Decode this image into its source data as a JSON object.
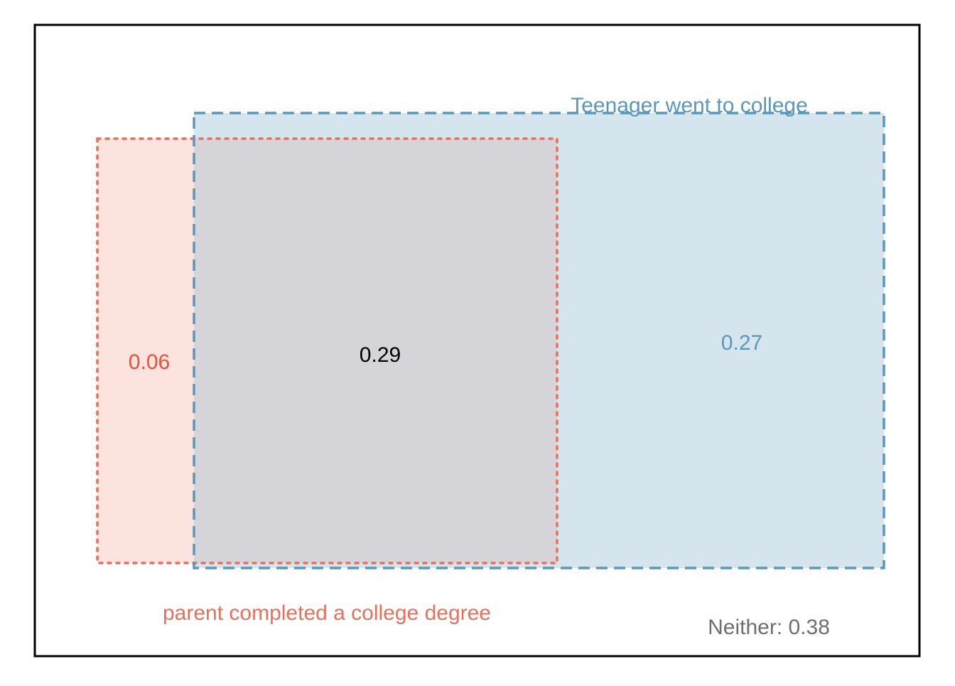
{
  "diagram": {
    "type": "venn-rectangles",
    "parent_set": {
      "label": "parent completed a college degree",
      "only_value": "0.06",
      "color": "#E8705A",
      "fill": "#FCE3DE"
    },
    "teen_set": {
      "label": "Teenager went to college",
      "only_value": "0.27",
      "color": "#5A98BB",
      "fill": "#D5E5EE"
    },
    "overlap": {
      "value": "0.29",
      "fill": "#D5D4D9",
      "color": "#000000"
    },
    "neither": {
      "label": "Neither: 0.38",
      "color": "#6E6E6E"
    }
  }
}
